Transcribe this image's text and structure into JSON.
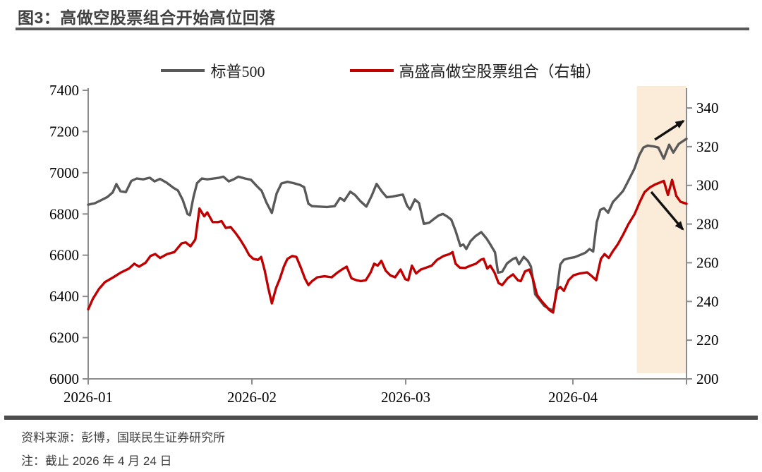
{
  "header": {
    "title": "图3：高做空股票组合开始高位回落"
  },
  "legend": [
    {
      "label": "标普500",
      "color": "#595959"
    },
    {
      "label": "高盛高做空股票组合（右轴）",
      "color": "#c00000"
    }
  ],
  "footer": {
    "source": "资料来源：彭博，国联民生证券研究所",
    "note": "注：截止 2026 年 4 月 24 日"
  },
  "colors": {
    "sp500_line": "#595959",
    "short_basket_line": "#c00000",
    "axis": "#8c8c8c",
    "tick_label": "#000000",
    "highlight_band": "#fbecd9",
    "arrow": "#111111"
  },
  "chart_data": {
    "type": "line",
    "title": "高做空股票组合开始高位回落",
    "left_axis": {
      "min": 6000,
      "max": 7400,
      "ticks": [
        7400,
        7200,
        7000,
        6800,
        6600,
        6400,
        6200,
        6000
      ]
    },
    "right_axis": {
      "min": 200,
      "max": 340,
      "ticks": [
        340,
        320,
        300,
        280,
        260,
        240,
        220,
        200
      ]
    },
    "x_axis": {
      "labels": [
        {
          "text": "2026-01",
          "pos": 0.0
        },
        {
          "text": "2026-02",
          "pos": 0.2736
        },
        {
          "text": "2026-03",
          "pos": 0.5307
        },
        {
          "text": "2026-04",
          "pos": 0.8101
        }
      ],
      "extra_tick_pos": [
        1.0
      ]
    },
    "highlight_band": {
      "from": 0.917,
      "to": 1.0
    },
    "series": [
      {
        "name": "标普500",
        "axis": "left",
        "color": "#595959",
        "points": [
          [
            0.0,
            6845
          ],
          [
            0.011,
            6852
          ],
          [
            0.021,
            6866
          ],
          [
            0.032,
            6882
          ],
          [
            0.041,
            6905
          ],
          [
            0.047,
            6945
          ],
          [
            0.054,
            6910
          ],
          [
            0.063,
            6906
          ],
          [
            0.072,
            6960
          ],
          [
            0.081,
            6972
          ],
          [
            0.092,
            6968
          ],
          [
            0.103,
            6976
          ],
          [
            0.111,
            6958
          ],
          [
            0.12,
            6970
          ],
          [
            0.131,
            6952
          ],
          [
            0.142,
            6928
          ],
          [
            0.15,
            6914
          ],
          [
            0.158,
            6868
          ],
          [
            0.166,
            6800
          ],
          [
            0.17,
            6794
          ],
          [
            0.176,
            6882
          ],
          [
            0.182,
            6950
          ],
          [
            0.19,
            6972
          ],
          [
            0.199,
            6968
          ],
          [
            0.21,
            6972
          ],
          [
            0.219,
            6976
          ],
          [
            0.226,
            6981
          ],
          [
            0.235,
            6958
          ],
          [
            0.243,
            6968
          ],
          [
            0.251,
            6981
          ],
          [
            0.262,
            6972
          ],
          [
            0.272,
            6966
          ],
          [
            0.282,
            6935
          ],
          [
            0.29,
            6912
          ],
          [
            0.298,
            6855
          ],
          [
            0.307,
            6805
          ],
          [
            0.315,
            6900
          ],
          [
            0.323,
            6948
          ],
          [
            0.333,
            6956
          ],
          [
            0.343,
            6950
          ],
          [
            0.354,
            6941
          ],
          [
            0.361,
            6930
          ],
          [
            0.368,
            6850
          ],
          [
            0.374,
            6838
          ],
          [
            0.386,
            6836
          ],
          [
            0.399,
            6834
          ],
          [
            0.412,
            6838
          ],
          [
            0.421,
            6878
          ],
          [
            0.428,
            6864
          ],
          [
            0.438,
            6908
          ],
          [
            0.446,
            6892
          ],
          [
            0.455,
            6862
          ],
          [
            0.465,
            6836
          ],
          [
            0.474,
            6890
          ],
          [
            0.482,
            6946
          ],
          [
            0.491,
            6908
          ],
          [
            0.499,
            6881
          ],
          [
            0.508,
            6884
          ],
          [
            0.518,
            6890
          ],
          [
            0.526,
            6894
          ],
          [
            0.533,
            6840
          ],
          [
            0.538,
            6822
          ],
          [
            0.546,
            6870
          ],
          [
            0.553,
            6853
          ],
          [
            0.561,
            6752
          ],
          [
            0.57,
            6758
          ],
          [
            0.578,
            6776
          ],
          [
            0.586,
            6793
          ],
          [
            0.593,
            6800
          ],
          [
            0.6,
            6788
          ],
          [
            0.607,
            6772
          ],
          [
            0.614,
            6718
          ],
          [
            0.622,
            6645
          ],
          [
            0.627,
            6652
          ],
          [
            0.632,
            6630
          ],
          [
            0.639,
            6668
          ],
          [
            0.647,
            6692
          ],
          [
            0.657,
            6712
          ],
          [
            0.666,
            6680
          ],
          [
            0.673,
            6648
          ],
          [
            0.68,
            6614
          ],
          [
            0.685,
            6515
          ],
          [
            0.692,
            6520
          ],
          [
            0.7,
            6560
          ],
          [
            0.709,
            6580
          ],
          [
            0.715,
            6588
          ],
          [
            0.72,
            6556
          ],
          [
            0.728,
            6592
          ],
          [
            0.735,
            6572
          ],
          [
            0.74,
            6545
          ],
          [
            0.747,
            6410
          ],
          [
            0.754,
            6385
          ],
          [
            0.762,
            6355
          ],
          [
            0.77,
            6340
          ],
          [
            0.777,
            6332
          ],
          [
            0.783,
            6420
          ],
          [
            0.789,
            6555
          ],
          [
            0.795,
            6578
          ],
          [
            0.803,
            6585
          ],
          [
            0.813,
            6590
          ],
          [
            0.822,
            6601
          ],
          [
            0.831,
            6612
          ],
          [
            0.838,
            6630
          ],
          [
            0.844,
            6618
          ],
          [
            0.85,
            6760
          ],
          [
            0.856,
            6820
          ],
          [
            0.862,
            6828
          ],
          [
            0.869,
            6806
          ],
          [
            0.877,
            6858
          ],
          [
            0.886,
            6886
          ],
          [
            0.894,
            6912
          ],
          [
            0.903,
            6962
          ],
          [
            0.913,
            7020
          ],
          [
            0.921,
            7085
          ],
          [
            0.928,
            7122
          ],
          [
            0.935,
            7132
          ],
          [
            0.945,
            7128
          ],
          [
            0.953,
            7122
          ],
          [
            0.962,
            7068
          ],
          [
            0.971,
            7136
          ],
          [
            0.978,
            7098
          ],
          [
            0.987,
            7140
          ],
          [
            1.0,
            7165
          ]
        ]
      },
      {
        "name": "高盛高做空股票组合（右轴）",
        "axis": "right",
        "color": "#c00000",
        "points": [
          [
            0.0,
            236
          ],
          [
            0.008,
            241.5
          ],
          [
            0.018,
            246.5
          ],
          [
            0.028,
            250
          ],
          [
            0.042,
            252.5
          ],
          [
            0.055,
            255
          ],
          [
            0.068,
            257
          ],
          [
            0.077,
            259.5
          ],
          [
            0.085,
            258
          ],
          [
            0.096,
            260
          ],
          [
            0.104,
            263.5
          ],
          [
            0.112,
            264.5
          ],
          [
            0.12,
            262.5
          ],
          [
            0.132,
            264.5
          ],
          [
            0.144,
            265.5
          ],
          [
            0.156,
            270
          ],
          [
            0.163,
            270.5
          ],
          [
            0.171,
            268.5
          ],
          [
            0.179,
            272
          ],
          [
            0.186,
            288
          ],
          [
            0.194,
            284
          ],
          [
            0.199,
            286
          ],
          [
            0.208,
            281
          ],
          [
            0.217,
            281
          ],
          [
            0.223,
            281.5
          ],
          [
            0.23,
            278
          ],
          [
            0.238,
            278.5
          ],
          [
            0.246,
            275.5
          ],
          [
            0.254,
            272
          ],
          [
            0.262,
            268
          ],
          [
            0.269,
            264
          ],
          [
            0.276,
            262
          ],
          [
            0.284,
            261.5
          ],
          [
            0.289,
            263
          ],
          [
            0.295,
            256
          ],
          [
            0.301,
            247
          ],
          [
            0.307,
            239
          ],
          [
            0.314,
            247
          ],
          [
            0.32,
            251.5
          ],
          [
            0.327,
            258
          ],
          [
            0.333,
            262
          ],
          [
            0.341,
            263.5
          ],
          [
            0.348,
            263
          ],
          [
            0.356,
            257
          ],
          [
            0.362,
            252
          ],
          [
            0.368,
            248.5
          ],
          [
            0.374,
            250.5
          ],
          [
            0.383,
            252.5
          ],
          [
            0.395,
            253
          ],
          [
            0.407,
            252.5
          ],
          [
            0.417,
            255
          ],
          [
            0.424,
            256.5
          ],
          [
            0.432,
            258
          ],
          [
            0.44,
            252
          ],
          [
            0.448,
            251
          ],
          [
            0.456,
            250.5
          ],
          [
            0.464,
            251
          ],
          [
            0.472,
            255
          ],
          [
            0.478,
            259.5
          ],
          [
            0.484,
            258.5
          ],
          [
            0.49,
            261
          ],
          [
            0.497,
            256
          ],
          [
            0.505,
            253.5
          ],
          [
            0.513,
            252.5
          ],
          [
            0.522,
            256.5
          ],
          [
            0.53,
            251.5
          ],
          [
            0.535,
            251
          ],
          [
            0.541,
            258.5
          ],
          [
            0.548,
            254.5
          ],
          [
            0.556,
            256.5
          ],
          [
            0.565,
            257.5
          ],
          [
            0.574,
            258.5
          ],
          [
            0.583,
            261.5
          ],
          [
            0.594,
            263.5
          ],
          [
            0.604,
            264.5
          ],
          [
            0.609,
            265.5
          ],
          [
            0.614,
            259.5
          ],
          [
            0.621,
            257.5
          ],
          [
            0.63,
            257.3
          ],
          [
            0.639,
            258.5
          ],
          [
            0.648,
            259.5
          ],
          [
            0.656,
            261.5
          ],
          [
            0.661,
            262
          ],
          [
            0.667,
            257
          ],
          [
            0.672,
            258.5
          ],
          [
            0.679,
            255
          ],
          [
            0.686,
            249.5
          ],
          [
            0.692,
            248.5
          ],
          [
            0.701,
            252
          ],
          [
            0.71,
            254
          ],
          [
            0.718,
            251
          ],
          [
            0.723,
            250.5
          ],
          [
            0.73,
            255.5
          ],
          [
            0.737,
            256.5
          ],
          [
            0.743,
            252
          ],
          [
            0.75,
            243.5
          ],
          [
            0.757,
            240.5
          ],
          [
            0.764,
            238
          ],
          [
            0.771,
            235.5
          ],
          [
            0.777,
            234.3
          ],
          [
            0.783,
            246
          ],
          [
            0.789,
            247.5
          ],
          [
            0.795,
            245.5
          ],
          [
            0.803,
            251
          ],
          [
            0.811,
            253.5
          ],
          [
            0.822,
            254.5
          ],
          [
            0.834,
            255
          ],
          [
            0.842,
            253
          ],
          [
            0.849,
            251
          ],
          [
            0.857,
            262
          ],
          [
            0.863,
            264.5
          ],
          [
            0.87,
            262.5
          ],
          [
            0.877,
            266
          ],
          [
            0.885,
            269.5
          ],
          [
            0.894,
            274.5
          ],
          [
            0.903,
            280
          ],
          [
            0.913,
            285
          ],
          [
            0.922,
            291.5
          ],
          [
            0.93,
            296.5
          ],
          [
            0.939,
            299
          ],
          [
            0.948,
            300.5
          ],
          [
            0.956,
            301.5
          ],
          [
            0.962,
            302.3
          ],
          [
            0.969,
            295
          ],
          [
            0.976,
            302.8
          ],
          [
            0.983,
            294.5
          ],
          [
            0.99,
            291.5
          ],
          [
            1.0,
            290.5
          ]
        ]
      }
    ],
    "annotations": {
      "arrows": [
        {
          "name": "up-arrow",
          "from_fx": 0.947,
          "from_fy": 0.171,
          "to_fx": 0.995,
          "to_fy": 0.106
        },
        {
          "name": "down-arrow",
          "from_fx": 0.941,
          "from_fy": 0.352,
          "to_fx": 0.994,
          "to_fy": 0.482
        }
      ]
    },
    "legend_position": "top",
    "grid": false
  }
}
